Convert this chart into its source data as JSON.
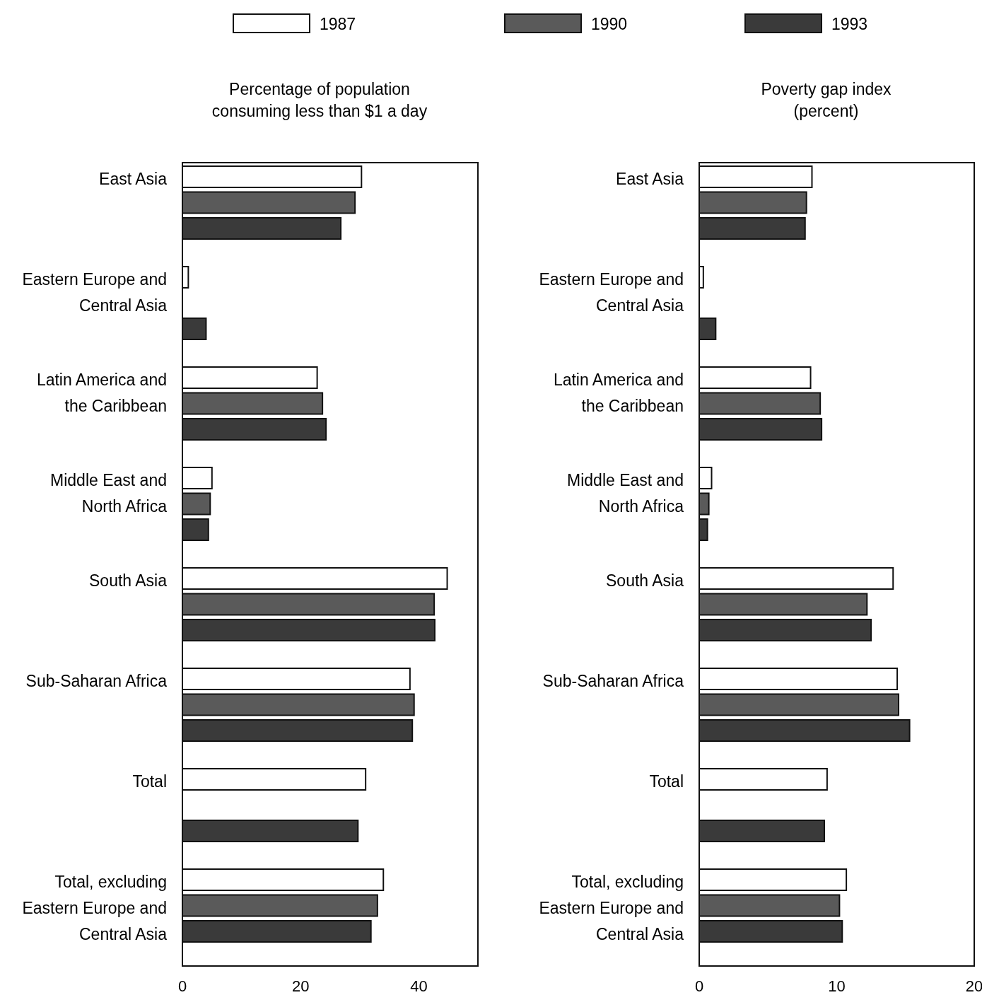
{
  "chart_data": [
    {
      "type": "bar",
      "orientation": "horizontal",
      "title": "Percentage of population consuming less than $1 a day",
      "categories": [
        "East Asia",
        "Eastern Europe and Central Asia",
        "Latin America and the Caribbean",
        "Middle East and North Africa",
        "South Asia",
        "Sub-Saharan Africa",
        "Total",
        "Total, excluding Eastern Europe and Central Asia"
      ],
      "series": [
        {
          "name": "1987",
          "color": "#ffffff",
          "values": [
            30.3,
            1.0,
            22.8,
            5.0,
            44.8,
            38.5,
            31.0,
            34.0
          ]
        },
        {
          "name": "1990",
          "color": "#5a5a5a",
          "values": [
            29.2,
            null,
            23.7,
            4.7,
            42.6,
            39.2,
            null,
            33.0
          ]
        },
        {
          "name": "1993",
          "color": "#3a3a3a",
          "values": [
            26.8,
            4.0,
            24.3,
            4.4,
            42.7,
            38.9,
            29.7,
            31.9
          ]
        }
      ],
      "xlim": [
        0,
        50
      ],
      "xticks": [
        0,
        20,
        40
      ],
      "grid": false,
      "legend": "top"
    },
    {
      "type": "bar",
      "orientation": "horizontal",
      "title": "Poverty gap index (percent)",
      "categories": [
        "East Asia",
        "Eastern Europe and Central Asia",
        "Latin America and the Caribbean",
        "Middle East and North Africa",
        "South Asia",
        "Sub-Saharan Africa",
        "Total",
        "Total, excluding Eastern Europe and Central Asia"
      ],
      "series": [
        {
          "color": "#ffffff",
          "values": [
            8.2,
            0.3,
            8.1,
            0.9,
            14.1,
            14.4,
            9.3,
            10.7
          ]
        },
        {
          "color": "#5a5a5a",
          "values": [
            7.8,
            null,
            8.8,
            0.7,
            12.2,
            14.5,
            null,
            10.2
          ]
        },
        {
          "color": "#3a3a3a",
          "values": [
            7.7,
            1.2,
            8.9,
            0.6,
            12.5,
            15.3,
            9.1,
            10.4
          ]
        }
      ],
      "xlim": [
        0,
        20
      ],
      "xticks": [
        0,
        10,
        20
      ],
      "grid": false
    }
  ]
}
